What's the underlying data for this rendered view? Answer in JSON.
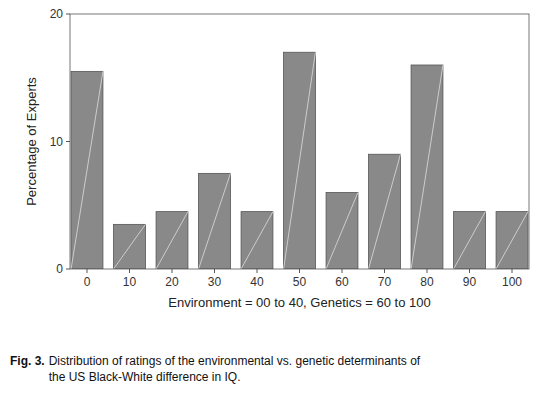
{
  "chart_data": {
    "type": "bar",
    "x": [
      0,
      10,
      20,
      30,
      40,
      50,
      60,
      70,
      80,
      90,
      100
    ],
    "values": [
      15.5,
      3.5,
      4.5,
      7.5,
      4.5,
      17.0,
      6.0,
      9.0,
      16.0,
      4.5,
      4.5
    ],
    "color": "#898989",
    "xlim": [
      -4,
      104
    ],
    "xticks": [
      0,
      10,
      20,
      30,
      40,
      50,
      60,
      70,
      80,
      90,
      100
    ],
    "ylim": [
      0,
      20
    ],
    "yticks": [
      0,
      10,
      20
    ],
    "xlabel": "Environment = 00 to 40, Genetics = 60 to 100",
    "ylabel": "Percentage of Experts",
    "annotations": [
      "Fig. 3.",
      "Distribution of ratings of the environmental vs. genetic determinants of\nthe US Black-White difference in IQ."
    ],
    "grid": false
  }
}
